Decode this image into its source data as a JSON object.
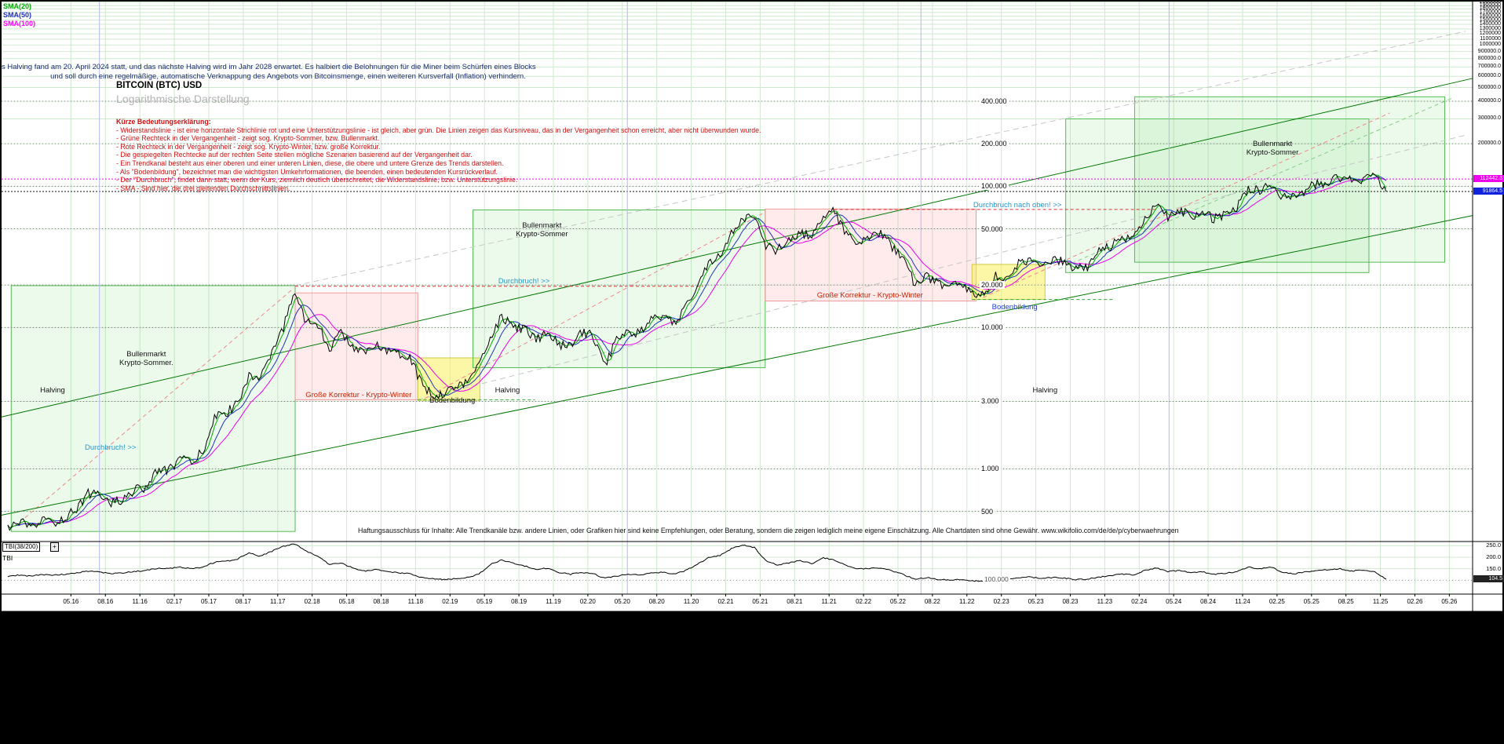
{
  "legend": {
    "items": [
      {
        "label": "SMA(20)",
        "color": "#00aa00"
      },
      {
        "label": "SMA(50)",
        "color": "#2233bb"
      },
      {
        "label": "SMA(100)",
        "color": "#ff00ff"
      }
    ]
  },
  "header": {
    "line1": "s Halving fand am 20. April 2024 statt, und das nächste Halving wird im Jahr 2028 erwartet. Es halbiert die Belohnungen für die Miner beim Schürfen eines Blocks",
    "line2": "und soll durch eine regelmäßige, automatische Verknappung des Angebots von Bitcoinsmenge, einen weiteren Kursverfall (Inflation) verhindern."
  },
  "title": "BITCOIN (BTC) USD",
  "subtitle": "Logarithmische Darstellung",
  "explanation": {
    "heading": "Kürze Bedeutungserklärung:",
    "lines": [
      "- Widerstandslinie - ist eine horizontale Strichlinie rot und eine Unterstützungslinie - ist gleich, aber grün. Die Linien zeigen das Kursniveau, das in der Vergangenheit schon erreicht, aber nicht überwunden wurde.",
      "- Grüne Rechteck in der Vergangenheit - zeigt sog. Krypto-Sommer, bzw. Bullenmarkt.",
      "- Rote Rechteck in der Vergangenheit - zeigt sog. Krypto-Winter, bzw. große Korrektur.",
      "- Die gespiegelten Rechtecke auf der rechten Seite stellen mögliche Szenarien basierend auf der Vergangenheit dar.",
      "- Ein Trendkanal besteht aus einer oberen und einer unteren Linien, diese, die obere und untere Grenze des Trends darstellen.",
      "- Als \"Bodenbildung\", bezeichnet man die wichtigsten Umkehrformationen, die beenden, einen bedeutenden Kursrückverlauf.",
      "- Der \"Durchbruch\", findet dann statt, wenn der Kurs, ziemlich deutlich überschreitet, die Widerstandslinie, bzw. Unterstützungslinie.",
      "- SMA - Sind hier, die drei gleitenden Durchschnittslinien."
    ]
  },
  "disclaimer": "Haftungsausschluss für Inhalte: Alle Trendkanäle bzw. andere Linien, oder Grafiken hier sind keine Empfehlungen, oder Beratung, sondern die zeigen lediglich meine eigene Einschätzung. Alle Chartdaten sind ohne Gewähr.  www.wikifolio.com/de/de/p/cyberwaehrungen",
  "tbi": {
    "indicator_label": "TBI(38/200)",
    "expand_button": "+",
    "axis_title": "TBI"
  },
  "chart_data": {
    "type": "line",
    "title": "BITCOIN (BTC) USD",
    "y_scale": "log",
    "x_domain_years": [
      2015.83,
      2026.5
    ],
    "y_domain": [
      306,
      2030000
    ],
    "x_tick_labels": [
      "05.16",
      "08.16",
      "11.16",
      "02.17",
      "05.17",
      "08.17",
      "11.17",
      "02.18",
      "05.18",
      "08.18",
      "11.18",
      "02.19",
      "05.19",
      "08.19",
      "11.19",
      "02.20",
      "05.20",
      "08.20",
      "11.20",
      "02.21",
      "05.21",
      "08.21",
      "11.21",
      "02.22",
      "05.22",
      "08.22",
      "11.22",
      "02.23",
      "05.23",
      "08.23",
      "11.23",
      "02.24",
      "05.24",
      "08.24",
      "11.24",
      "02.25",
      "05.25",
      "08.25",
      "11.25",
      "02.26",
      "05.26"
    ],
    "y_right_labels": [
      "2000000",
      "1900000",
      "1800000",
      "1700000",
      "1600000",
      "1500000",
      "1400000",
      "1300000",
      "1200000",
      "1100000",
      "1000000",
      "900000.0",
      "800000.0",
      "700000.0",
      "600000.0",
      "500000.0",
      "400000.0",
      "300000.0",
      "200000.0"
    ],
    "price_level_labels": [
      {
        "text": "400.000",
        "value": 400000
      },
      {
        "text": "200.000",
        "value": 200000
      },
      {
        "text": "100.000",
        "value": 100000
      },
      {
        "text": "50.000",
        "value": 50000
      },
      {
        "text": "20.000",
        "value": 20000
      },
      {
        "text": "10.000",
        "value": 10000
      },
      {
        "text": "3.000",
        "value": 3000
      },
      {
        "text": "1.000",
        "value": 1000
      },
      {
        "text": "500",
        "value": 500
      }
    ],
    "series_start": {
      "year": 2015,
      "month": 11
    },
    "price_monthly_usd": [
      370,
      430,
      370,
      435,
      415,
      450,
      530,
      670,
      655,
      575,
      610,
      700,
      745,
      965,
      970,
      1190,
      1080,
      1350,
      2300,
      2480,
      2875,
      4700,
      4340,
      6470,
      9950,
      18800,
      10800,
      10360,
      6930,
      9240,
      7495,
      6400,
      7730,
      7030,
      6625,
      6300,
      4020,
      3300,
      3460,
      3855,
      4100,
      5320,
      8560,
      12000,
      10080,
      9630,
      8290,
      9150,
      7550,
      7190,
      9350,
      8600,
      5300,
      8630,
      9450,
      9140,
      11350,
      11650,
      10780,
      13800,
      19700,
      29000,
      33100,
      45240,
      58800,
      63500,
      37330,
      35040,
      41630,
      47130,
      43790,
      61320,
      66500,
      46220,
      38480,
      43190,
      45540,
      37640,
      31790,
      19985,
      23300,
      20050,
      19430,
      20490,
      17170,
      16550,
      23130,
      23140,
      28480,
      29250,
      27220,
      30480,
      29230,
      25930,
      26970,
      34660,
      37720,
      42280,
      42580,
      61200,
      71330,
      60640,
      67540,
      62680,
      64630,
      58970,
      63340,
      70220,
      96450,
      93430,
      102400,
      84380,
      82550,
      94210,
      104600,
      107100,
      115800,
      108200,
      114000,
      121000,
      91864.5
    ],
    "sma_overlays": [
      {
        "label": "SMA(20)",
        "window_days": 20,
        "color": "#00aa00"
      },
      {
        "label": "SMA(50)",
        "window_days": 50,
        "color": "#2233bb"
      },
      {
        "label": "SMA(100)",
        "window_days": 100,
        "color": "#ee00ee"
      }
    ],
    "halvings": [
      2016.54,
      2020.37,
      2024.3
    ],
    "marker_vline_year": 2022.5,
    "current_markers": [
      {
        "text": "112442.3",
        "value": 112442.3,
        "line_color": "#ee00ee",
        "badge_color": "#ee00ee"
      },
      {
        "text": "91864.5",
        "value": 91864.5,
        "line_color": "#111111",
        "badge_color": "#1122dd"
      }
    ],
    "rects": [
      {
        "kind": "summer",
        "t0": 2015.9,
        "t1": 2017.96,
        "p0": 360,
        "p1": 19800
      },
      {
        "kind": "winter",
        "t0": 2017.96,
        "t1": 2018.85,
        "p0": 3080,
        "p1": 17600
      },
      {
        "kind": "bottom",
        "t0": 2018.85,
        "t1": 2019.3,
        "p0": 3050,
        "p1": 6100
      },
      {
        "kind": "summer",
        "t0": 2019.25,
        "t1": 2021.37,
        "p0": 5200,
        "p1": 68000
      },
      {
        "kind": "winter",
        "t0": 2021.37,
        "t1": 2022.9,
        "p0": 15400,
        "p1": 69000
      },
      {
        "kind": "bottom",
        "t0": 2022.87,
        "t1": 2023.4,
        "p0": 15800,
        "p1": 28000
      },
      {
        "kind": "summer",
        "t0": 2023.55,
        "t1": 2025.75,
        "p0": 24500,
        "p1": 300000
      },
      {
        "kind": "summer",
        "t0": 2024.05,
        "t1": 2026.3,
        "p0": 29000,
        "p1": 430000
      }
    ],
    "trend_channel": [
      {
        "t0": 2015.83,
        "p0": 470,
        "t1": 2026.5,
        "p1": 62000
      },
      {
        "t0": 2015.83,
        "p0": 2330,
        "t1": 2026.5,
        "p1": 580000
      }
    ],
    "mirror_lines": [
      {
        "t0": 2017.96,
        "p0": 19800,
        "t1": 2026.45,
        "p1": 1250000
      },
      {
        "t0": 2018.85,
        "p0": 3080,
        "t1": 2026.45,
        "p1": 230000
      }
    ],
    "scenario_lines": [
      {
        "color": "#ee8888",
        "t0": 2016.0,
        "p0": 450,
        "t1": 2017.95,
        "p1": 19000
      },
      {
        "color": "#ee8888",
        "t0": 2018.9,
        "p0": 3150,
        "t1": 2021.35,
        "p1": 64000
      },
      {
        "color": "#ee8888",
        "t0": 2022.95,
        "p0": 16300,
        "t1": 2025.9,
        "p1": 330000
      },
      {
        "color": "#88cc88",
        "t0": 2023.5,
        "p0": 26000,
        "t1": 2026.35,
        "p1": 420000
      }
    ],
    "resistance_segments": [
      {
        "value": 19600,
        "t0": 2017.96,
        "t1": 2020.92
      },
      {
        "value": 68500,
        "t0": 2021.87,
        "t1": 2024.2
      }
    ],
    "support_segments": [
      {
        "value": 3080,
        "t0": 2018.85,
        "t1": 2019.7
      },
      {
        "value": 15800,
        "t0": 2022.87,
        "t1": 2023.9
      }
    ],
    "annotations": [
      {
        "lines": [
          "Bullenmarkt",
          "Krypto-Sommer."
        ],
        "color": "#111111",
        "t": 2016.88,
        "p": 6000
      },
      {
        "lines": [
          "Halving"
        ],
        "color": "#111111",
        "t": 2016.2,
        "p": 3550
      },
      {
        "lines": [
          "Durchbruch! >>"
        ],
        "color": "#2299cc",
        "t": 2016.62,
        "p": 1400
      },
      {
        "lines": [
          "Große Korrektur - Krypto-Winter"
        ],
        "color": "#cc2200",
        "t": 2018.42,
        "p": 3280
      },
      {
        "lines": [
          "Bodenbildung"
        ],
        "color": "#111111",
        "t": 2019.1,
        "p": 3000
      },
      {
        "lines": [
          "Bullenmarkt",
          "Krypto-Sommer"
        ],
        "color": "#111111",
        "t": 2019.75,
        "p": 49000
      },
      {
        "lines": [
          "Durchbruch! >>"
        ],
        "color": "#2299cc",
        "t": 2019.62,
        "p": 21000
      },
      {
        "lines": [
          "Halving"
        ],
        "color": "#111111",
        "t": 2019.5,
        "p": 3550
      },
      {
        "lines": [
          "Große Korrektur - Krypto-Winter"
        ],
        "color": "#cc2200",
        "t": 2022.13,
        "p": 16800
      },
      {
        "lines": [
          "Bodenbildung"
        ],
        "color": "#2244cc",
        "t": 2023.18,
        "p": 13800
      },
      {
        "lines": [
          "Durchbruch nach oben! >>"
        ],
        "color": "#2299cc",
        "t": 2023.2,
        "p": 72500
      },
      {
        "lines": [
          "Halving"
        ],
        "color": "#111111",
        "t": 2023.4,
        "p": 3550
      },
      {
        "lines": [
          "Bullenmarkt",
          "Krypto-Sommer"
        ],
        "color": "#111111",
        "t": 2025.05,
        "p": 185000
      }
    ],
    "tbi": {
      "axis_labels": [
        {
          "text": "250.0",
          "value": 250
        },
        {
          "text": "200.0",
          "value": 200
        },
        {
          "text": "150.0",
          "value": 150
        }
      ],
      "badge": {
        "text": "104.5",
        "value": 104.5
      },
      "level": {
        "text": "100.000",
        "value": 100
      },
      "monthly": [
        118,
        122,
        118,
        124,
        122,
        126,
        132,
        140,
        136,
        128,
        132,
        138,
        142,
        152,
        150,
        158,
        150,
        158,
        178,
        182,
        192,
        220,
        204,
        226,
        248,
        258,
        226,
        205,
        168,
        175,
        155,
        140,
        146,
        138,
        132,
        128,
        112,
        106,
        103,
        107,
        112,
        126,
        168,
        188,
        174,
        162,
        148,
        152,
        134,
        126,
        134,
        128,
        108,
        118,
        126,
        122,
        132,
        134,
        126,
        142,
        168,
        198,
        208,
        238,
        252,
        242,
        184,
        166,
        176,
        186,
        172,
        198,
        188,
        164,
        148,
        152,
        154,
        140,
        124,
        104,
        112,
        104,
        101,
        104,
        97,
        95,
        104,
        103,
        112,
        114,
        108,
        112,
        110,
        103,
        105,
        114,
        120,
        126,
        124,
        142,
        154,
        138,
        142,
        134,
        136,
        126,
        130,
        138,
        158,
        150,
        156,
        134,
        128,
        136,
        144,
        146,
        150,
        140,
        144,
        136,
        104.5
      ]
    }
  }
}
